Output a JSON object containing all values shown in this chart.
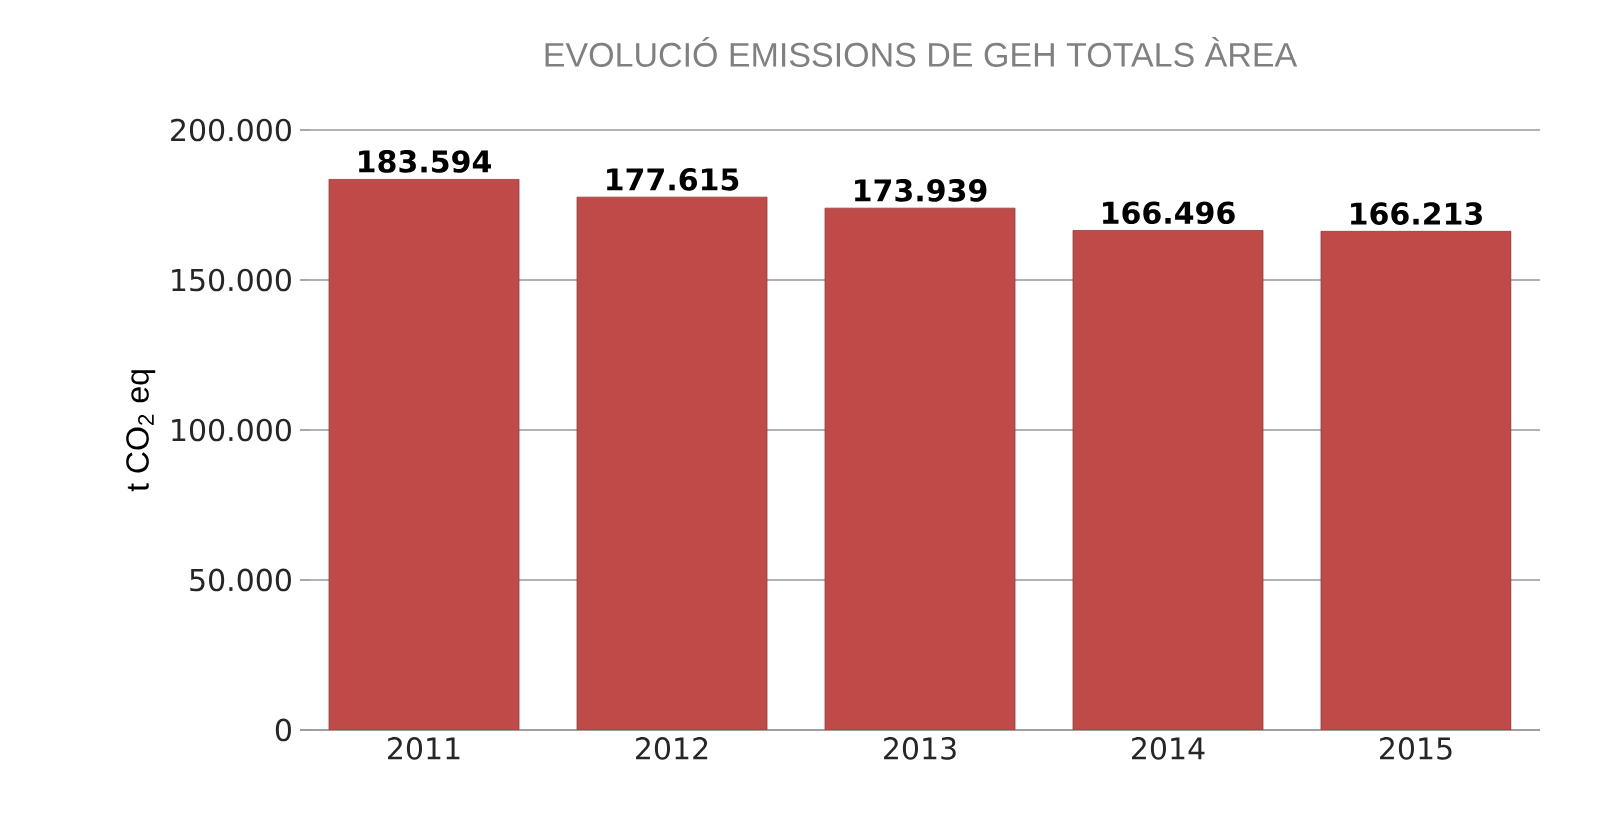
{
  "chart_data": {
    "type": "bar",
    "title": "EVOLUCIÓ EMISSIONS DE GEH TOTALS ÀREA",
    "ylabel": "t CO$_{2}$ eq",
    "categories": [
      "2011",
      "2012",
      "2013",
      "2014",
      "2015"
    ],
    "values": [
      183594,
      177615,
      173939,
      166496,
      166213
    ],
    "value_labels": [
      "183.594",
      "177.615",
      "173.939",
      "166.496",
      "166.213"
    ],
    "color": "#be4b48",
    "ylim": [
      0,
      200000
    ],
    "yticks": [
      {
        "value": 0,
        "label": "0"
      },
      {
        "value": 50000,
        "label": "50.000"
      },
      {
        "value": 100000,
        "label": "100.000"
      },
      {
        "value": 150000,
        "label": "150.000"
      },
      {
        "value": 200000,
        "label": "200.000"
      }
    ],
    "grid": "y"
  }
}
